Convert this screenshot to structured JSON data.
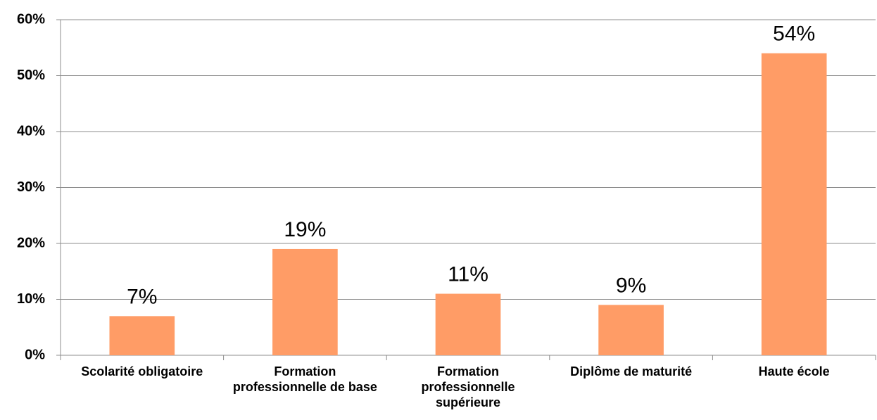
{
  "chart_data": {
    "type": "bar",
    "categories": [
      "Scolarité obligatoire",
      "Formation professionnelle de base",
      "Formation professionnelle supérieure",
      "Diplôme de maturité",
      "Haute école"
    ],
    "values": [
      7,
      19,
      11,
      9,
      54
    ],
    "value_labels": [
      "7%",
      "19%",
      "11%",
      "9%",
      "54%"
    ],
    "color": "#ff9c66",
    "ylim": [
      0,
      60
    ],
    "yticks": [
      {
        "value": 0,
        "label": "0%"
      },
      {
        "value": 10,
        "label": "10%"
      },
      {
        "value": 20,
        "label": "20%"
      },
      {
        "value": 30,
        "label": "30%"
      },
      {
        "value": 40,
        "label": "40%"
      },
      {
        "value": 50,
        "label": "50%"
      },
      {
        "value": 60,
        "label": "60%"
      }
    ],
    "grid": true
  }
}
